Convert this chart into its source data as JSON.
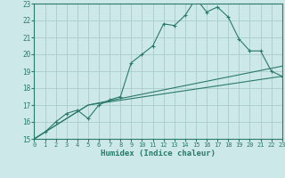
{
  "xlabel": "Humidex (Indice chaleur)",
  "bg_color": "#cce8e8",
  "grid_color": "#aacccc",
  "line_color": "#2a7a6a",
  "xlim": [
    0,
    23
  ],
  "ylim": [
    15,
    23
  ],
  "yticks": [
    15,
    16,
    17,
    18,
    19,
    20,
    21,
    22,
    23
  ],
  "xticks": [
    0,
    1,
    2,
    3,
    4,
    5,
    6,
    7,
    8,
    9,
    10,
    11,
    12,
    13,
    14,
    15,
    16,
    17,
    18,
    19,
    20,
    21,
    22,
    23
  ],
  "series": [
    {
      "x": [
        0,
        1,
        2,
        3,
        4,
        5,
        6,
        7,
        8,
        9,
        10,
        11,
        12,
        13,
        14,
        15,
        16,
        17,
        18,
        19,
        20,
        21,
        22,
        23
      ],
      "y": [
        15,
        15.4,
        16.0,
        16.5,
        16.7,
        16.2,
        17.0,
        17.3,
        17.5,
        19.5,
        20.0,
        20.5,
        21.8,
        21.7,
        22.3,
        23.3,
        22.5,
        22.8,
        22.2,
        20.9,
        20.2,
        20.2,
        19.0,
        18.7
      ],
      "marker": true
    },
    {
      "x": [
        0,
        5,
        23
      ],
      "y": [
        15,
        17.0,
        18.7
      ],
      "marker": false
    },
    {
      "x": [
        0,
        5,
        23
      ],
      "y": [
        15,
        17.0,
        19.3
      ],
      "marker": false
    }
  ]
}
